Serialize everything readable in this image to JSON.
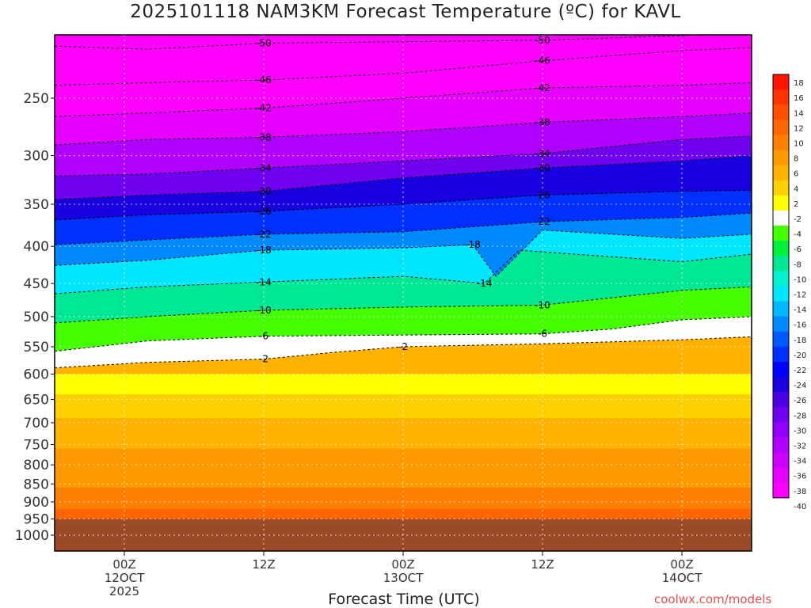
{
  "title": "2025101118 NAM3KM Forecast Temperature (ºC) for KAVL",
  "credit": "coolwx.com/models",
  "chart_data": {
    "type": "heatmap",
    "xlabel": "Forecast Time (UTC)",
    "ylabel": "",
    "x_ticks": [
      {
        "t": 6,
        "lines": [
          "00Z",
          "12OCT",
          "2025"
        ]
      },
      {
        "t": 18,
        "lines": [
          "12Z"
        ]
      },
      {
        "t": 30,
        "lines": [
          "00Z",
          "13OCT"
        ]
      },
      {
        "t": 42,
        "lines": [
          "12Z"
        ]
      },
      {
        "t": 54,
        "lines": [
          "00Z",
          "14OCT"
        ]
      }
    ],
    "xlim": [
      0,
      60
    ],
    "y_ticks": [
      250,
      300,
      350,
      400,
      450,
      500,
      550,
      600,
      650,
      700,
      750,
      800,
      850,
      900,
      950,
      1000
    ],
    "ylim_hPa": [
      200,
      1025
    ],
    "colorbar": {
      "labels": [
        "18",
        "16",
        "14",
        "12",
        "10",
        "8",
        "6",
        "4",
        "2",
        "-2",
        "-4",
        "-6",
        "-8",
        "-10",
        "-12",
        "-14",
        "-16",
        "-18",
        "-20",
        "-22",
        "-24",
        "-26",
        "-28",
        "-30",
        "-32",
        "-34",
        "-36",
        "-38",
        "-40"
      ],
      "colors": [
        "#ff1500",
        "#ff3300",
        "#ff4f00",
        "#ff6600",
        "#ff7f00",
        "#ff9900",
        "#ffb300",
        "#ffd000",
        "#ffff00",
        "#ffffff",
        "#44ff00",
        "#00f040",
        "#00e896",
        "#00f0d0",
        "#00e6ff",
        "#00b8ff",
        "#0088ff",
        "#0058ff",
        "#0030ff",
        "#0000ff",
        "#1800e0",
        "#4a00e0",
        "#7000f0",
        "#9000ff",
        "#b000ff",
        "#cc00ff",
        "#e600ff",
        "#ff00ff"
      ]
    },
    "ground_color": "#9b4a27",
    "ground_level_hPa": 950,
    "isotherms": [
      {
        "value": -50,
        "label": "-50",
        "points": [
          [
            0,
            212
          ],
          [
            8,
            214
          ],
          [
            18,
            210
          ],
          [
            30,
            209
          ],
          [
            42,
            208
          ],
          [
            54,
            205
          ],
          [
            60,
            203
          ]
        ]
      },
      {
        "value": -46,
        "label": "-46",
        "points": [
          [
            0,
            240
          ],
          [
            8,
            238
          ],
          [
            18,
            236
          ],
          [
            30,
            231
          ],
          [
            42,
            222
          ],
          [
            54,
            215
          ],
          [
            60,
            213
          ]
        ]
      },
      {
        "value": -42,
        "label": "-42",
        "points": [
          [
            0,
            265
          ],
          [
            8,
            262
          ],
          [
            18,
            258
          ],
          [
            30,
            250
          ],
          [
            42,
            242
          ],
          [
            54,
            240
          ],
          [
            60,
            238
          ]
        ]
      },
      {
        "value": -38,
        "label": "-38",
        "points": [
          [
            0,
            290
          ],
          [
            8,
            285
          ],
          [
            18,
            283
          ],
          [
            30,
            278
          ],
          [
            42,
            270
          ],
          [
            54,
            265
          ],
          [
            60,
            262
          ]
        ]
      },
      {
        "value": -34,
        "label": "-34",
        "points": [
          [
            0,
            320
          ],
          [
            8,
            318
          ],
          [
            18,
            312
          ],
          [
            30,
            305
          ],
          [
            42,
            298
          ],
          [
            54,
            285
          ],
          [
            60,
            282
          ]
        ]
      },
      {
        "value": -30,
        "label": "-30",
        "points": [
          [
            0,
            345
          ],
          [
            8,
            340
          ],
          [
            18,
            336
          ],
          [
            30,
            322
          ],
          [
            42,
            312
          ],
          [
            54,
            305
          ],
          [
            60,
            300
          ]
        ]
      },
      {
        "value": -26,
        "label": "-26",
        "points": [
          [
            0,
            368
          ],
          [
            8,
            362
          ],
          [
            18,
            358
          ],
          [
            30,
            350
          ],
          [
            42,
            340
          ],
          [
            54,
            336
          ],
          [
            60,
            335
          ]
        ]
      },
      {
        "value": -22,
        "label": "-22",
        "points": [
          [
            0,
            398
          ],
          [
            8,
            392
          ],
          [
            18,
            385
          ],
          [
            30,
            382
          ],
          [
            42,
            370
          ],
          [
            54,
            365
          ],
          [
            60,
            360
          ]
        ]
      },
      {
        "value": -18,
        "label": "-18",
        "points": [
          [
            0,
            425
          ],
          [
            8,
            418
          ],
          [
            18,
            405
          ],
          [
            30,
            402
          ],
          [
            36,
            398
          ],
          [
            38,
            440
          ],
          [
            42,
            380
          ],
          [
            54,
            390
          ],
          [
            60,
            385
          ]
        ]
      },
      {
        "value": -14,
        "label": "-14",
        "points": [
          [
            0,
            465
          ],
          [
            8,
            455
          ],
          [
            18,
            448
          ],
          [
            30,
            440
          ],
          [
            37,
            450
          ],
          [
            40,
            405
          ],
          [
            54,
            420
          ],
          [
            60,
            410
          ]
        ]
      },
      {
        "value": -10,
        "label": "-10",
        "points": [
          [
            0,
            510
          ],
          [
            8,
            500
          ],
          [
            18,
            490
          ],
          [
            30,
            485
          ],
          [
            42,
            482
          ],
          [
            54,
            460
          ],
          [
            60,
            455
          ]
        ]
      },
      {
        "value": -6,
        "label": "-6",
        "points": [
          [
            0,
            558
          ],
          [
            8,
            540
          ],
          [
            18,
            532
          ],
          [
            30,
            530
          ],
          [
            42,
            528
          ],
          [
            48,
            520
          ],
          [
            54,
            505
          ],
          [
            60,
            500
          ]
        ]
      },
      {
        "value": -2,
        "label": "-2",
        "points": [
          [
            0,
            588
          ],
          [
            8,
            578
          ],
          [
            18,
            572
          ],
          [
            24,
            560
          ],
          [
            30,
            550
          ],
          [
            42,
            545
          ],
          [
            54,
            538
          ],
          [
            60,
            533
          ]
        ]
      }
    ]
  }
}
